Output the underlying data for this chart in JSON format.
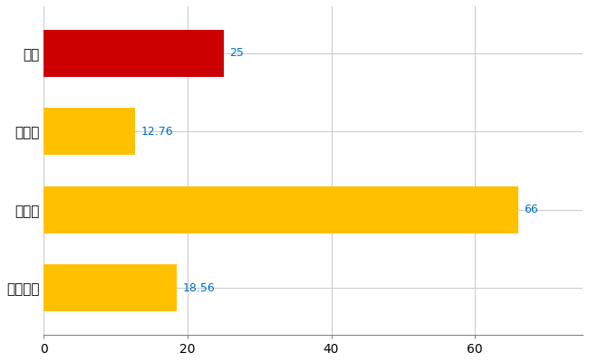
{
  "categories": [
    "関市",
    "県平均",
    "県最大",
    "全国平均"
  ],
  "values": [
    25,
    12.76,
    66,
    18.56
  ],
  "bar_colors": [
    "#CC0000",
    "#FFC000",
    "#FFC000",
    "#FFC000"
  ],
  "value_labels": [
    "25",
    "12.76",
    "66",
    "18.56"
  ],
  "value_label_color": "#0070C0",
  "xlim": [
    0,
    75
  ],
  "xticks": [
    0,
    20,
    40,
    60
  ],
  "grid_color": "#CCCCCC",
  "background_color": "#FFFFFF",
  "bar_height": 0.6,
  "label_fontsize": 11,
  "tick_fontsize": 10,
  "value_fontsize": 9
}
